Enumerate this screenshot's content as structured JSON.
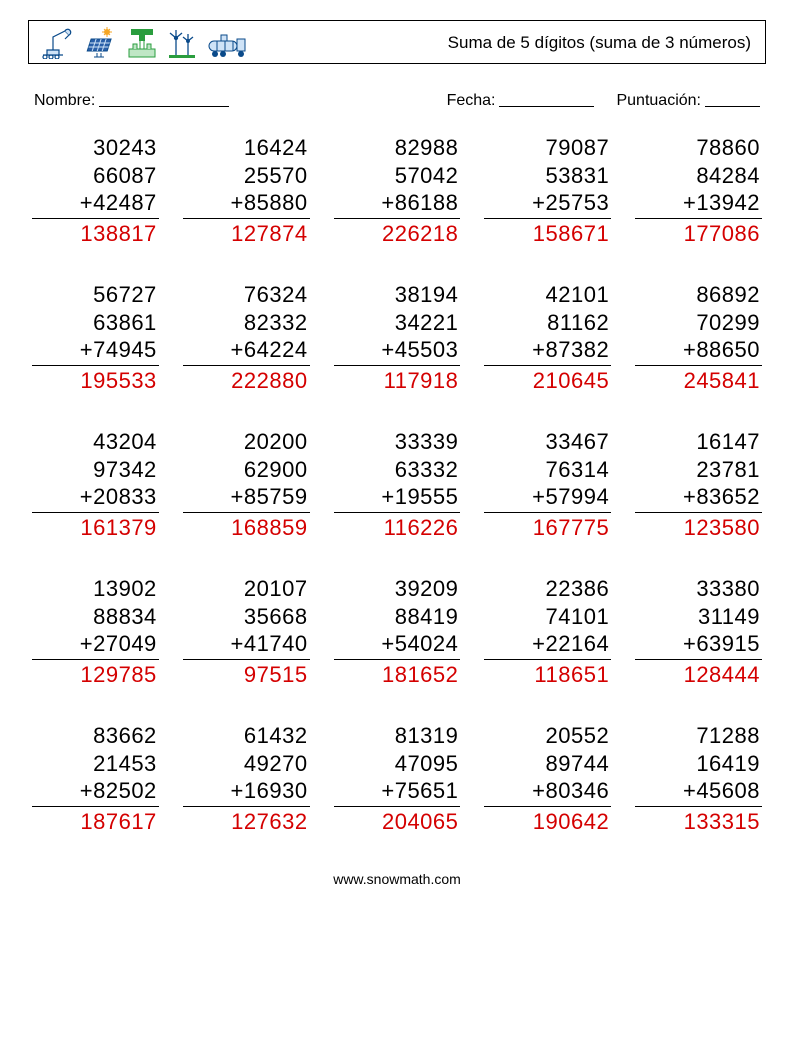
{
  "title": "Suma de 5 dígitos (suma de 3 números)",
  "labels": {
    "name": "Nombre:",
    "date": "Fecha:",
    "score": "Puntuación:"
  },
  "footer": "www.snowmath.com",
  "answer_color": "#d40000",
  "problems": [
    {
      "a": "30243",
      "b": "66087",
      "c": "42487",
      "ans": "138817"
    },
    {
      "a": "16424",
      "b": "25570",
      "c": "85880",
      "ans": "127874"
    },
    {
      "a": "82988",
      "b": "57042",
      "c": "86188",
      "ans": "226218"
    },
    {
      "a": "79087",
      "b": "53831",
      "c": "25753",
      "ans": "158671"
    },
    {
      "a": "78860",
      "b": "84284",
      "c": "13942",
      "ans": "177086"
    },
    {
      "a": "56727",
      "b": "63861",
      "c": "74945",
      "ans": "195533"
    },
    {
      "a": "76324",
      "b": "82332",
      "c": "64224",
      "ans": "222880"
    },
    {
      "a": "38194",
      "b": "34221",
      "c": "45503",
      "ans": "117918"
    },
    {
      "a": "42101",
      "b": "81162",
      "c": "87382",
      "ans": "210645"
    },
    {
      "a": "86892",
      "b": "70299",
      "c": "88650",
      "ans": "245841"
    },
    {
      "a": "43204",
      "b": "97342",
      "c": "20833",
      "ans": "161379"
    },
    {
      "a": "20200",
      "b": "62900",
      "c": "85759",
      "ans": "168859"
    },
    {
      "a": "33339",
      "b": "63332",
      "c": "19555",
      "ans": "116226"
    },
    {
      "a": "33467",
      "b": "76314",
      "c": "57994",
      "ans": "167775"
    },
    {
      "a": "16147",
      "b": "23781",
      "c": "83652",
      "ans": "123580"
    },
    {
      "a": "13902",
      "b": "88834",
      "c": "27049",
      "ans": "129785"
    },
    {
      "a": "20107",
      "b": "35668",
      "c": "41740",
      "ans": "97515"
    },
    {
      "a": "39209",
      "b": "88419",
      "c": "54024",
      "ans": "181652"
    },
    {
      "a": "22386",
      "b": "74101",
      "c": "22164",
      "ans": "118651"
    },
    {
      "a": "33380",
      "b": "31149",
      "c": "63915",
      "ans": "128444"
    },
    {
      "a": "83662",
      "b": "21453",
      "c": "82502",
      "ans": "187617"
    },
    {
      "a": "61432",
      "b": "49270",
      "c": "16930",
      "ans": "127632"
    },
    {
      "a": "81319",
      "b": "47095",
      "c": "75651",
      "ans": "204065"
    },
    {
      "a": "20552",
      "b": "89744",
      "c": "80346",
      "ans": "190642"
    },
    {
      "a": "71288",
      "b": "16419",
      "c": "45608",
      "ans": "133315"
    }
  ]
}
